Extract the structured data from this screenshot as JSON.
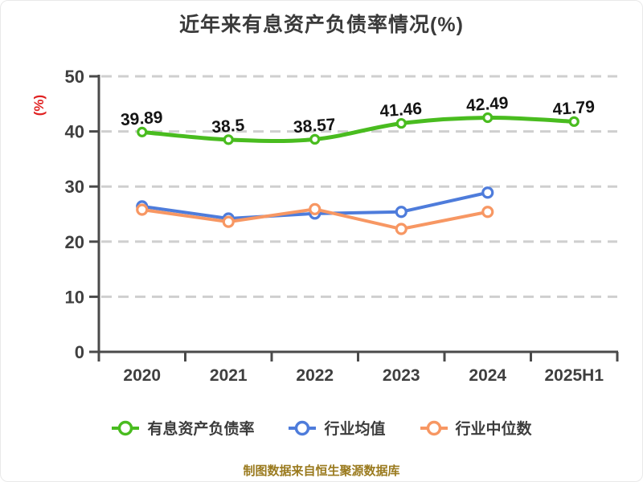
{
  "title": "近年来有息资产负债率情况(%)",
  "y_axis_unit": "(%)",
  "footer": "制图数据来自恒生聚源数据库",
  "colors": {
    "title_text": "#3a3a3a",
    "axis": "#4a4a4a",
    "grid": "#cfcfcf",
    "tick_text": "#3f3f3f",
    "unit_label": "#e02222",
    "data_label": "#141414",
    "footer_text": "#9a7a1e",
    "series_green": "#49bc1f",
    "series_blue": "#4e7cdb",
    "series_orange": "#f79763"
  },
  "chart_data": {
    "type": "line",
    "categories": [
      "2020",
      "2021",
      "2022",
      "2023",
      "2024",
      "2025H1"
    ],
    "series": [
      {
        "name": "有息资产负债率",
        "color": "#49bc1f",
        "values": [
          39.89,
          38.5,
          38.57,
          41.46,
          42.49,
          41.79
        ],
        "labels": [
          "39.89",
          "38.5",
          "38.57",
          "41.46",
          "42.49",
          "41.79"
        ],
        "show_labels": true,
        "smooth": true,
        "line_width": 5
      },
      {
        "name": "行业均值",
        "color": "#4e7cdb",
        "values": [
          26.4,
          24.2,
          25.1,
          25.4,
          28.9
        ],
        "labels": [],
        "show_labels": false,
        "smooth": false,
        "line_width": 4
      },
      {
        "name": "行业中位数",
        "color": "#f79763",
        "values": [
          25.8,
          23.6,
          25.9,
          22.3,
          25.4
        ],
        "labels": [],
        "show_labels": false,
        "smooth": false,
        "line_width": 4
      }
    ],
    "ylim": [
      0,
      50
    ],
    "yticks": [
      0,
      10,
      20,
      30,
      40,
      50
    ],
    "grid": "horizontal dashed",
    "legend_position": "bottom",
    "title": "近年来有息资产负债率情况(%)",
    "ylabel": "(%)"
  }
}
